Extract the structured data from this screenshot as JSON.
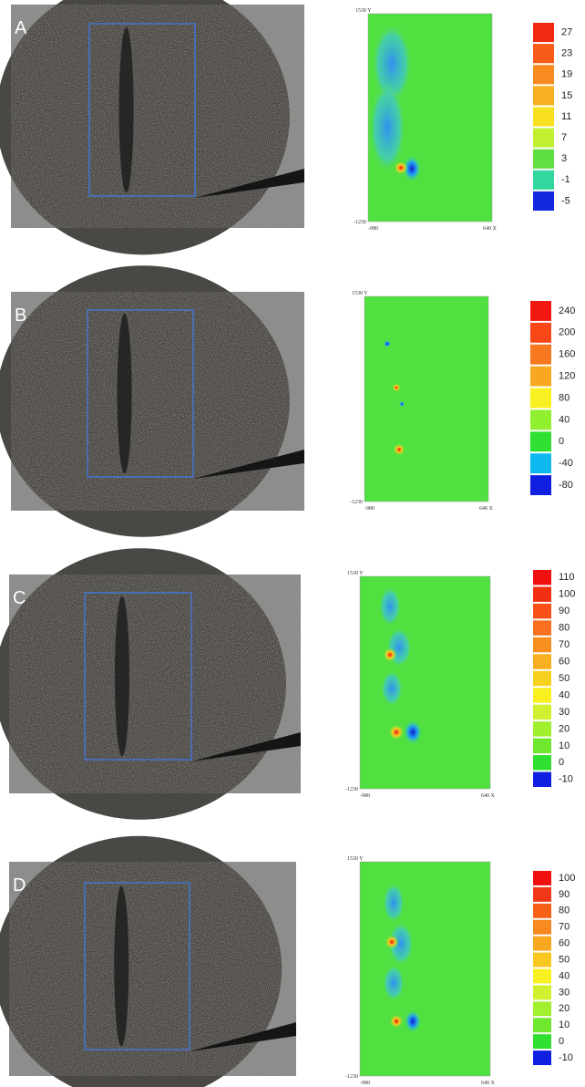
{
  "panels": [
    {
      "label": "A",
      "map": {
        "y_top": "1530 Y",
        "y_bottom": "-1230",
        "x_left": "-980",
        "x_right": "640 X"
      },
      "colorbar": {
        "labels": [
          27,
          23,
          19,
          15,
          11,
          7,
          3,
          -1,
          -5
        ],
        "colors": [
          "#f02a10",
          "#f85a18",
          "#f88a20",
          "#f8b020",
          "#f8e020",
          "#c0f030",
          "#60e040",
          "#30d8a0",
          "#1428e0"
        ]
      }
    },
    {
      "label": "B",
      "map": {
        "y_top": "1530 Y",
        "y_bottom": "-1230",
        "x_left": "-980",
        "x_right": "640 X"
      },
      "colorbar": {
        "labels": [
          240,
          200,
          160,
          120,
          80,
          40,
          0,
          -40,
          -80
        ],
        "colors": [
          "#f01810",
          "#f84818",
          "#f87820",
          "#f8a820",
          "#f8f020",
          "#90f030",
          "#30e030",
          "#10b8f0",
          "#1020e0"
        ]
      }
    },
    {
      "label": "C",
      "map": {
        "y_top": "1530 Y",
        "y_bottom": "-1230",
        "x_left": "-980",
        "x_right": "640 X"
      },
      "colorbar": {
        "labels": [
          110,
          100,
          90,
          80,
          70,
          60,
          50,
          40,
          30,
          20,
          10,
          0,
          -10
        ],
        "colors": [
          "#f01010",
          "#f03010",
          "#f85018",
          "#f87020",
          "#f89020",
          "#f8b020",
          "#f8d020",
          "#f8f020",
          "#d0f030",
          "#a0f030",
          "#70e830",
          "#30e030",
          "#1020e0"
        ]
      }
    },
    {
      "label": "D",
      "map": {
        "y_top": "1530 Y",
        "y_bottom": "-1230",
        "x_left": "-980",
        "x_right": "640 X"
      },
      "colorbar": {
        "labels": [
          100,
          90,
          80,
          70,
          60,
          50,
          40,
          30,
          20,
          10,
          0,
          -10
        ],
        "colors": [
          "#f01010",
          "#f03818",
          "#f86018",
          "#f88820",
          "#f8a820",
          "#f8c820",
          "#f8f020",
          "#d0f030",
          "#a0f030",
          "#70e830",
          "#30e030",
          "#1020e0"
        ]
      }
    }
  ]
}
